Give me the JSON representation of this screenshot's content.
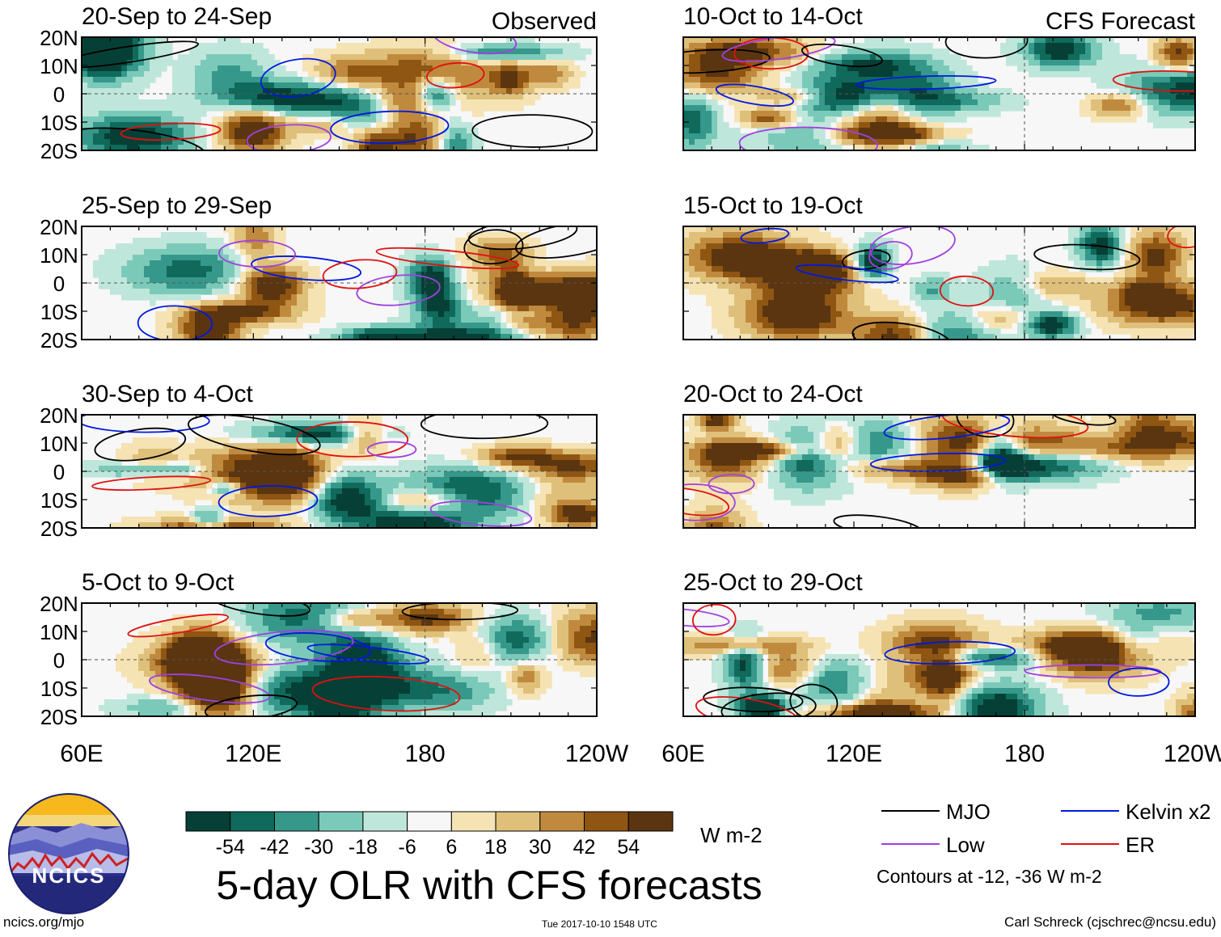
{
  "chart_data": {
    "type": "heatmap",
    "title": "5-day OLR with CFS forecasts",
    "units": "W m-2",
    "column_labels": {
      "observed": "Observed",
      "forecast": "CFS Forecast"
    },
    "y_ticks": [
      "20N",
      "10N",
      "0",
      "10S",
      "20S"
    ],
    "x_ticks": [
      "60E",
      "120E",
      "180",
      "120W"
    ],
    "panels": [
      {
        "period": "20-Sep to 24-Sep",
        "source": "observed",
        "seed": 11
      },
      {
        "period": "25-Sep to 29-Sep",
        "source": "observed",
        "seed": 23
      },
      {
        "period": "30-Sep to 4-Oct",
        "source": "observed",
        "seed": 37
      },
      {
        "period": "5-Oct to 9-Oct",
        "source": "observed",
        "seed": 41
      },
      {
        "period": "10-Oct to 14-Oct",
        "source": "forecast",
        "seed": 53
      },
      {
        "period": "15-Oct to 19-Oct",
        "source": "forecast",
        "seed": 67
      },
      {
        "period": "20-Oct to 24-Oct",
        "source": "forecast",
        "seed": 71
      },
      {
        "period": "25-Oct to 29-Oct",
        "source": "forecast",
        "seed": 89
      }
    ],
    "colorbar": {
      "labels": [
        "-54",
        "-42",
        "-30",
        "-18",
        "-6",
        "6",
        "18",
        "30",
        "42",
        "54"
      ],
      "colors": [
        "#063f36",
        "#0f6a5c",
        "#36988a",
        "#7bcab9",
        "#bfe6da",
        "#f7f7f7",
        "#f5e3b4",
        "#dfc07a",
        "#c08a3e",
        "#8f5512",
        "#5a3510"
      ]
    },
    "legend": [
      {
        "label": "MJO",
        "color": "#000000"
      },
      {
        "label": "Kelvin x2",
        "color": "#0018e0"
      },
      {
        "label": "Low",
        "color": "#a040e0"
      },
      {
        "label": "ER",
        "color": "#e01010"
      }
    ],
    "contour_note": "Contours at -12, -36 W m-2"
  },
  "footer": {
    "site": "ncics.org/mjo",
    "timestamp": "Tue 2017-10-10 1548 UTC",
    "author": "Carl Schreck (cjschrec@ncsu.edu)",
    "logo_text": "NCICS"
  }
}
